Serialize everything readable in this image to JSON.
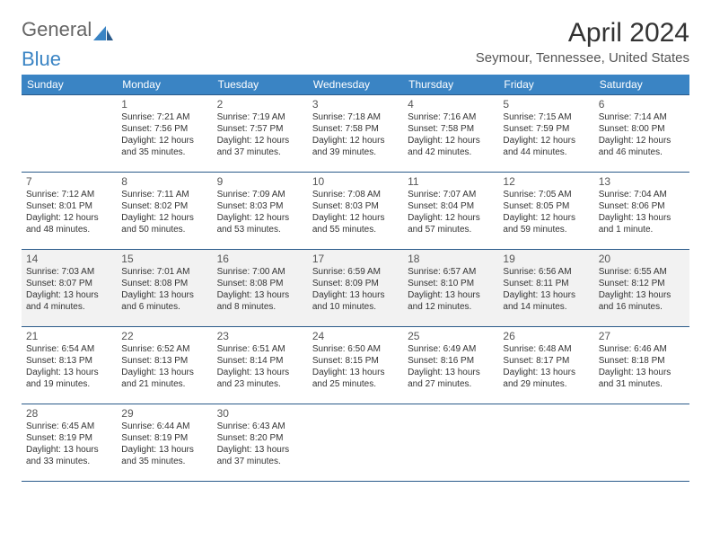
{
  "brand": {
    "text1": "General",
    "text2": "Blue"
  },
  "title": "April 2024",
  "location": "Seymour, Tennessee, United States",
  "colors": {
    "header_bg": "#3a84c4",
    "header_text": "#ffffff",
    "border": "#2a5a8a",
    "alt_row": "#f2f2f2",
    "text": "#333333"
  },
  "weekdays": [
    "Sunday",
    "Monday",
    "Tuesday",
    "Wednesday",
    "Thursday",
    "Friday",
    "Saturday"
  ],
  "weeks": [
    [
      null,
      {
        "n": "1",
        "sr": "7:21 AM",
        "ss": "7:56 PM",
        "dl": "12 hours and 35 minutes."
      },
      {
        "n": "2",
        "sr": "7:19 AM",
        "ss": "7:57 PM",
        "dl": "12 hours and 37 minutes."
      },
      {
        "n": "3",
        "sr": "7:18 AM",
        "ss": "7:58 PM",
        "dl": "12 hours and 39 minutes."
      },
      {
        "n": "4",
        "sr": "7:16 AM",
        "ss": "7:58 PM",
        "dl": "12 hours and 42 minutes."
      },
      {
        "n": "5",
        "sr": "7:15 AM",
        "ss": "7:59 PM",
        "dl": "12 hours and 44 minutes."
      },
      {
        "n": "6",
        "sr": "7:14 AM",
        "ss": "8:00 PM",
        "dl": "12 hours and 46 minutes."
      }
    ],
    [
      {
        "n": "7",
        "sr": "7:12 AM",
        "ss": "8:01 PM",
        "dl": "12 hours and 48 minutes."
      },
      {
        "n": "8",
        "sr": "7:11 AM",
        "ss": "8:02 PM",
        "dl": "12 hours and 50 minutes."
      },
      {
        "n": "9",
        "sr": "7:09 AM",
        "ss": "8:03 PM",
        "dl": "12 hours and 53 minutes."
      },
      {
        "n": "10",
        "sr": "7:08 AM",
        "ss": "8:03 PM",
        "dl": "12 hours and 55 minutes."
      },
      {
        "n": "11",
        "sr": "7:07 AM",
        "ss": "8:04 PM",
        "dl": "12 hours and 57 minutes."
      },
      {
        "n": "12",
        "sr": "7:05 AM",
        "ss": "8:05 PM",
        "dl": "12 hours and 59 minutes."
      },
      {
        "n": "13",
        "sr": "7:04 AM",
        "ss": "8:06 PM",
        "dl": "13 hours and 1 minute."
      }
    ],
    [
      {
        "n": "14",
        "sr": "7:03 AM",
        "ss": "8:07 PM",
        "dl": "13 hours and 4 minutes."
      },
      {
        "n": "15",
        "sr": "7:01 AM",
        "ss": "8:08 PM",
        "dl": "13 hours and 6 minutes."
      },
      {
        "n": "16",
        "sr": "7:00 AM",
        "ss": "8:08 PM",
        "dl": "13 hours and 8 minutes."
      },
      {
        "n": "17",
        "sr": "6:59 AM",
        "ss": "8:09 PM",
        "dl": "13 hours and 10 minutes."
      },
      {
        "n": "18",
        "sr": "6:57 AM",
        "ss": "8:10 PM",
        "dl": "13 hours and 12 minutes."
      },
      {
        "n": "19",
        "sr": "6:56 AM",
        "ss": "8:11 PM",
        "dl": "13 hours and 14 minutes."
      },
      {
        "n": "20",
        "sr": "6:55 AM",
        "ss": "8:12 PM",
        "dl": "13 hours and 16 minutes."
      }
    ],
    [
      {
        "n": "21",
        "sr": "6:54 AM",
        "ss": "8:13 PM",
        "dl": "13 hours and 19 minutes."
      },
      {
        "n": "22",
        "sr": "6:52 AM",
        "ss": "8:13 PM",
        "dl": "13 hours and 21 minutes."
      },
      {
        "n": "23",
        "sr": "6:51 AM",
        "ss": "8:14 PM",
        "dl": "13 hours and 23 minutes."
      },
      {
        "n": "24",
        "sr": "6:50 AM",
        "ss": "8:15 PM",
        "dl": "13 hours and 25 minutes."
      },
      {
        "n": "25",
        "sr": "6:49 AM",
        "ss": "8:16 PM",
        "dl": "13 hours and 27 minutes."
      },
      {
        "n": "26",
        "sr": "6:48 AM",
        "ss": "8:17 PM",
        "dl": "13 hours and 29 minutes."
      },
      {
        "n": "27",
        "sr": "6:46 AM",
        "ss": "8:18 PM",
        "dl": "13 hours and 31 minutes."
      }
    ],
    [
      {
        "n": "28",
        "sr": "6:45 AM",
        "ss": "8:19 PM",
        "dl": "13 hours and 33 minutes."
      },
      {
        "n": "29",
        "sr": "6:44 AM",
        "ss": "8:19 PM",
        "dl": "13 hours and 35 minutes."
      },
      {
        "n": "30",
        "sr": "6:43 AM",
        "ss": "8:20 PM",
        "dl": "13 hours and 37 minutes."
      },
      null,
      null,
      null,
      null
    ]
  ],
  "labels": {
    "sunrise": "Sunrise: ",
    "sunset": "Sunset: ",
    "daylight": "Daylight: "
  }
}
